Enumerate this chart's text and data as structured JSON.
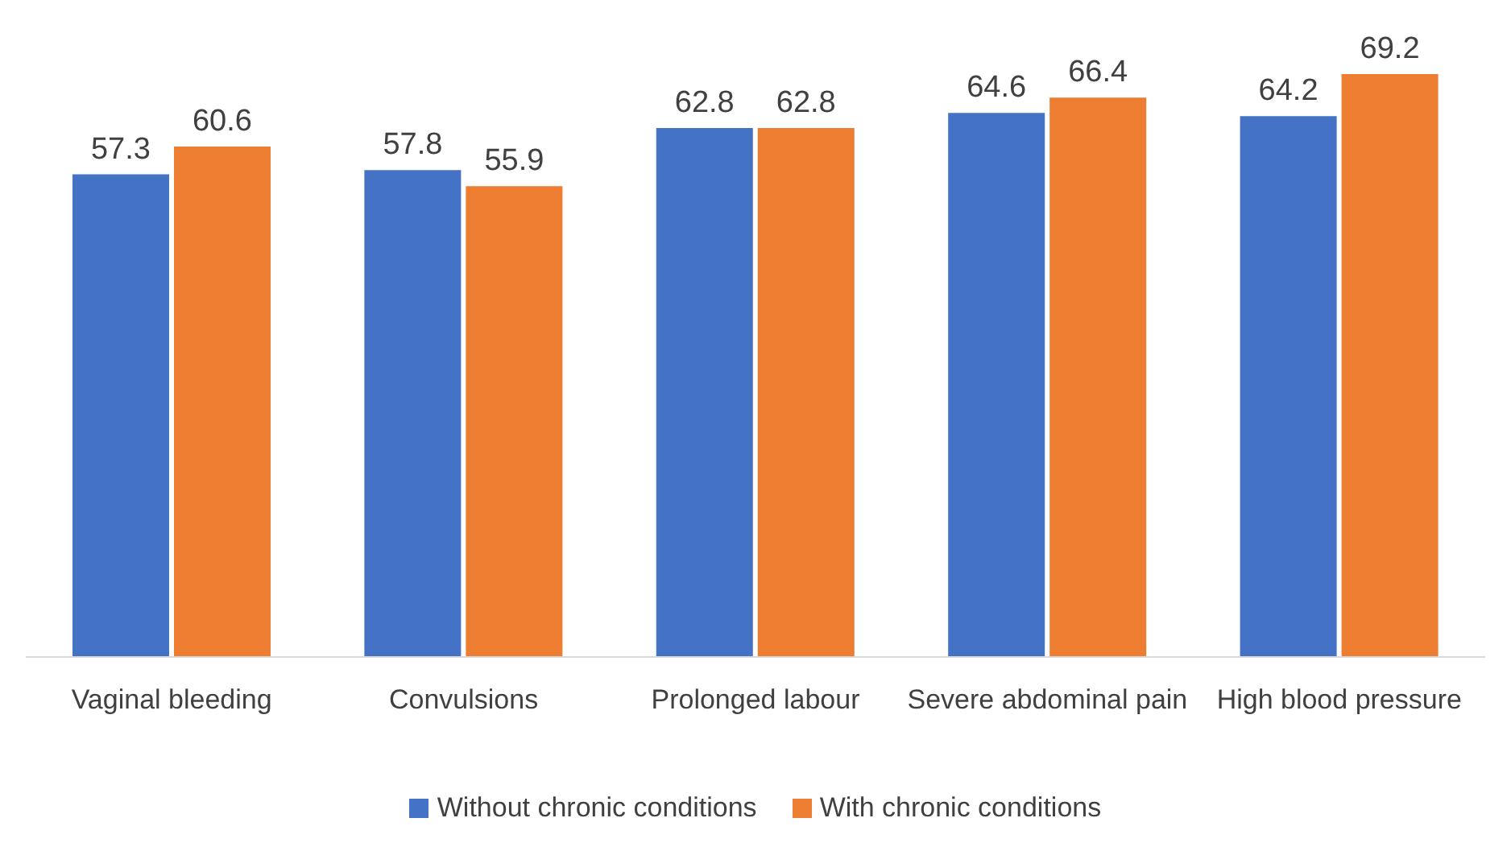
{
  "chart_data": {
    "type": "bar",
    "categories": [
      "Vaginal bleeding",
      "Convulsions",
      "Prolonged labour",
      "Severe abdominal pain",
      "High blood pressure"
    ],
    "series": [
      {
        "name": "Without chronic conditions",
        "color": "#4472c4",
        "values": [
          57.3,
          57.8,
          62.8,
          64.6,
          64.2
        ]
      },
      {
        "name": "With chronic conditions",
        "color": "#ed7d31",
        "values": [
          60.6,
          55.9,
          62.8,
          66.4,
          69.2
        ]
      }
    ],
    "data_labels": true,
    "legend": "bottom",
    "grid": false
  }
}
